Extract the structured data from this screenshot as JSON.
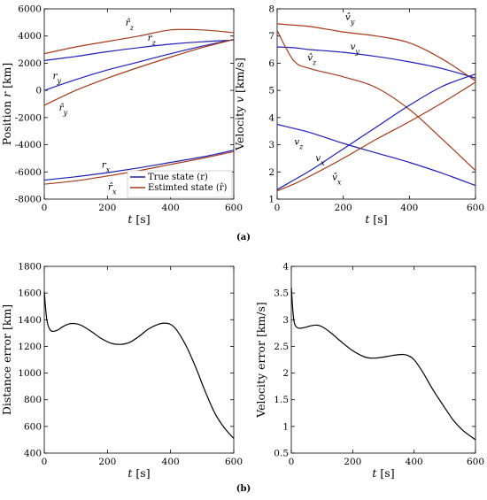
{
  "colors": {
    "true_state": "#1f1fb4",
    "estimated_state": "#a33a1a",
    "error": "#000000"
  },
  "captions": {
    "top": "(a)",
    "bottom": "(b)"
  },
  "chart_data": [
    {
      "id": "position",
      "type": "line",
      "xlabel": "t [s]",
      "ylabel": "Position r [km]",
      "xlim": [
        0,
        600
      ],
      "ylim": [
        -8000,
        6000
      ],
      "xticks": [
        0,
        200,
        400,
        600
      ],
      "yticks": [
        -8000,
        -6000,
        -4000,
        -2000,
        0,
        2000,
        4000,
        6000
      ],
      "grid": false,
      "legend": {
        "position": "bottom-right",
        "entries": [
          {
            "label": "True state (r)",
            "color_key": "true_state"
          },
          {
            "label": "Estimted state (r̂)",
            "color_key": "estimated_state"
          }
        ]
      },
      "x": [
        0,
        100,
        200,
        300,
        400,
        500,
        600
      ],
      "series": [
        {
          "label": "r_z",
          "color_key": "true_state",
          "values": [
            2200,
            2500,
            2850,
            3150,
            3400,
            3580,
            3700
          ]
        },
        {
          "label": "r̂_z",
          "color_key": "estimated_state",
          "values": [
            2700,
            3200,
            3600,
            4000,
            4450,
            4450,
            4250
          ]
        },
        {
          "label": "r_y",
          "color_key": "true_state",
          "values": [
            0,
            800,
            1500,
            2100,
            2700,
            3250,
            3750
          ]
        },
        {
          "label": "r̂_y",
          "color_key": "estimated_state",
          "values": [
            -1100,
            0,
            900,
            1700,
            2450,
            3150,
            3750
          ]
        },
        {
          "label": "r_x",
          "color_key": "true_state",
          "values": [
            -6600,
            -6350,
            -6050,
            -5700,
            -5300,
            -4900,
            -4400
          ]
        },
        {
          "label": "r̂_x",
          "color_key": "estimated_state",
          "values": [
            -6900,
            -6650,
            -6300,
            -5900,
            -5450,
            -5000,
            -4500
          ]
        }
      ],
      "curve_labels": [
        {
          "text": "r̂_z",
          "x": 270,
          "y": 4750
        },
        {
          "text": "r_z",
          "x": 340,
          "y": 3650
        },
        {
          "text": "r_y",
          "x": 40,
          "y": 850
        },
        {
          "text": "r̂_y",
          "x": 60,
          "y": -1500
        },
        {
          "text": "r_x",
          "x": 195,
          "y": -5700
        },
        {
          "text": "r̂_x",
          "x": 215,
          "y": -7300
        }
      ]
    },
    {
      "id": "velocity",
      "type": "line",
      "xlabel": "t [s]",
      "ylabel": "Velocity v [km/s]",
      "xlim": [
        0,
        600
      ],
      "ylim": [
        1,
        8
      ],
      "xticks": [
        0,
        200,
        400,
        600
      ],
      "yticks": [
        1,
        2,
        3,
        4,
        5,
        6,
        7,
        8
      ],
      "grid": false,
      "x": [
        0,
        50,
        100,
        200,
        300,
        400,
        500,
        600
      ],
      "series": [
        {
          "label": "v_y",
          "color_key": "true_state",
          "values": [
            6.6,
            6.57,
            6.5,
            6.4,
            6.25,
            6.05,
            5.8,
            5.45
          ]
        },
        {
          "label": "v̂_y",
          "color_key": "estimated_state",
          "values": [
            7.45,
            7.4,
            7.35,
            7.15,
            7.0,
            6.75,
            6.15,
            5.35
          ]
        },
        {
          "label": "v_z",
          "color_key": "true_state",
          "values": [
            3.75,
            3.6,
            3.45,
            3.05,
            2.7,
            2.35,
            1.95,
            1.5
          ]
        },
        {
          "label": "v̂_z",
          "color_key": "estimated_state",
          "values": [
            7.2,
            6.1,
            5.8,
            5.5,
            5.1,
            4.3,
            3.2,
            2.05
          ]
        },
        {
          "label": "v_x",
          "color_key": "true_state",
          "values": [
            1.35,
            1.7,
            2.05,
            2.85,
            3.65,
            4.45,
            5.15,
            5.6
          ]
        },
        {
          "label": "v̂_x",
          "color_key": "estimated_state",
          "values": [
            1.3,
            1.55,
            1.85,
            2.5,
            3.2,
            3.85,
            4.55,
            5.3
          ]
        }
      ],
      "curve_labels": [
        {
          "text": "v̂_y",
          "x": 220,
          "y": 7.6
        },
        {
          "text": "v_y",
          "x": 235,
          "y": 6.5
        },
        {
          "text": "v̂_z",
          "x": 105,
          "y": 6.1
        },
        {
          "text": "v_z",
          "x": 65,
          "y": 3.0
        },
        {
          "text": "v_x",
          "x": 130,
          "y": 2.4
        },
        {
          "text": "v̂_x",
          "x": 180,
          "y": 1.7
        }
      ]
    },
    {
      "id": "distance_error",
      "type": "line",
      "xlabel": "t [s]",
      "ylabel": "Distance error [km]",
      "xlim": [
        0,
        600
      ],
      "ylim": [
        400,
        1800
      ],
      "xticks": [
        0,
        200,
        400,
        600
      ],
      "yticks": [
        400,
        600,
        800,
        1000,
        1200,
        1400,
        1600,
        1800
      ],
      "grid": false,
      "x": [
        0,
        8,
        20,
        40,
        60,
        80,
        100,
        120,
        150,
        180,
        210,
        240,
        270,
        300,
        330,
        360,
        380,
        400,
        420,
        450,
        480,
        510,
        540,
        570,
        600
      ],
      "series": [
        {
          "label": "Distance error",
          "color_key": "error",
          "values": [
            1610,
            1400,
            1320,
            1320,
            1350,
            1370,
            1370,
            1355,
            1310,
            1260,
            1225,
            1215,
            1230,
            1275,
            1330,
            1365,
            1375,
            1365,
            1320,
            1200,
            1040,
            860,
            700,
            590,
            510
          ]
        }
      ]
    },
    {
      "id": "velocity_error",
      "type": "line",
      "xlabel": "t [s]",
      "ylabel": "Velocity error [km/s]",
      "xlim": [
        0,
        600
      ],
      "ylim": [
        0.5,
        4
      ],
      "xticks": [
        0,
        200,
        400,
        600
      ],
      "yticks": [
        0.5,
        1,
        1.5,
        2,
        2.5,
        3,
        3.5,
        4
      ],
      "grid": false,
      "x": [
        0,
        8,
        20,
        40,
        60,
        80,
        100,
        130,
        160,
        200,
        240,
        270,
        300,
        330,
        360,
        380,
        400,
        430,
        460,
        500,
        530,
        560,
        600
      ],
      "series": [
        {
          "label": "Velocity error",
          "color_key": "error",
          "values": [
            3.6,
            3.0,
            2.85,
            2.85,
            2.88,
            2.9,
            2.87,
            2.75,
            2.6,
            2.42,
            2.3,
            2.28,
            2.3,
            2.33,
            2.35,
            2.33,
            2.25,
            2.0,
            1.7,
            1.35,
            1.1,
            0.92,
            0.75
          ]
        }
      ]
    }
  ]
}
